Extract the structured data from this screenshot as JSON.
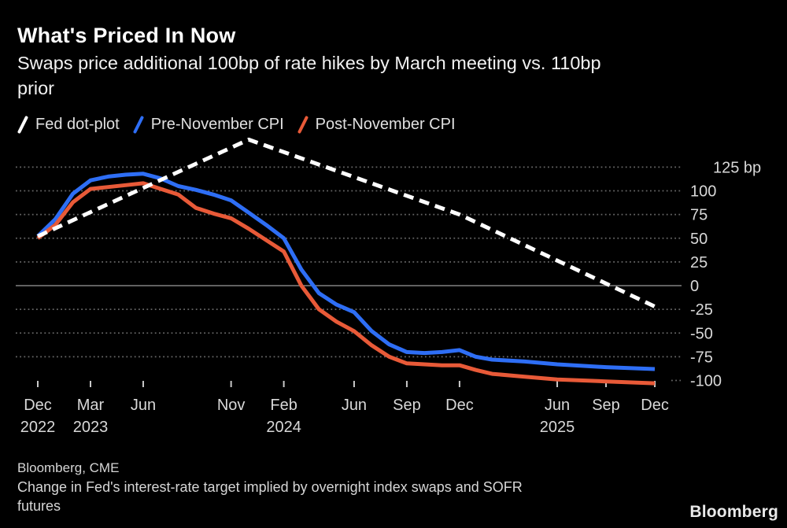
{
  "header": {
    "title": "What's Priced In Now",
    "subtitle_lines": [
      "Swaps price additional 100bp of rate hikes by March meeting vs. 110bp",
      "prior"
    ]
  },
  "legend": {
    "items": [
      {
        "label": "Fed dot-plot",
        "color": "#FFFFFF"
      },
      {
        "label": "Pre-November CPI",
        "color": "#2E6EF5"
      },
      {
        "label": "Post-November CPI",
        "color": "#E85A38"
      }
    ]
  },
  "chart_data": {
    "type": "line",
    "x_unit": "months_from_Dec_2022",
    "y_unit": "bp",
    "ylim": [
      -110,
      160
    ],
    "grid": {
      "dotted_color": "#666666",
      "zero_line_color": "#818181",
      "tick_color": "#c9c9c9"
    },
    "y_ticks": [
      {
        "value": 125,
        "label": "125 bp",
        "grid": "dotted"
      },
      {
        "value": 100,
        "label": "100",
        "grid": "dotted"
      },
      {
        "value": 75,
        "label": "75",
        "grid": "dotted"
      },
      {
        "value": 50,
        "label": "50",
        "grid": "dotted"
      },
      {
        "value": 25,
        "label": "25",
        "grid": "dotted"
      },
      {
        "value": 0,
        "label": "0",
        "grid": "solid"
      },
      {
        "value": -25,
        "label": "-25",
        "grid": "dotted"
      },
      {
        "value": -50,
        "label": "-50",
        "grid": "dotted"
      },
      {
        "value": -75,
        "label": "-75",
        "grid": "dotted"
      },
      {
        "value": -100,
        "label": "-100",
        "grid": "stub"
      }
    ],
    "x_ticks": [
      {
        "m": 0,
        "month": "Dec",
        "year": "2022"
      },
      {
        "m": 3,
        "month": "Mar",
        "year": "2023"
      },
      {
        "m": 6,
        "month": "Jun",
        "year": ""
      },
      {
        "m": 11,
        "month": "Nov",
        "year": ""
      },
      {
        "m": 14,
        "month": "Feb",
        "year": "2024"
      },
      {
        "m": 18,
        "month": "Jun",
        "year": ""
      },
      {
        "m": 21,
        "month": "Sep",
        "year": ""
      },
      {
        "m": 24,
        "month": "Dec",
        "year": ""
      },
      {
        "m": 30,
        "month": "Jun",
        "year": "2025"
      },
      {
        "m": 33,
        "month": "Sep",
        "year": ""
      },
      {
        "m": 36,
        "month": "Dec",
        "year": ""
      }
    ],
    "series": [
      {
        "name": "Pre-November CPI",
        "color": "#2E6EF5",
        "style": "solid",
        "points": [
          [
            0,
            52
          ],
          [
            1,
            70
          ],
          [
            2,
            97
          ],
          [
            3,
            111
          ],
          [
            4,
            115
          ],
          [
            5,
            117
          ],
          [
            6,
            118
          ],
          [
            7,
            113
          ],
          [
            8,
            105
          ],
          [
            9,
            101
          ],
          [
            10,
            96
          ],
          [
            11,
            90
          ],
          [
            12,
            77
          ],
          [
            13,
            64
          ],
          [
            14,
            50
          ],
          [
            15,
            17
          ],
          [
            16,
            -8
          ],
          [
            17,
            -20
          ],
          [
            18,
            -28
          ],
          [
            19,
            -48
          ],
          [
            20,
            -62
          ],
          [
            21,
            -70
          ],
          [
            22,
            -71
          ],
          [
            23,
            -70
          ],
          [
            24,
            -68
          ],
          [
            25,
            -75
          ],
          [
            26,
            -78
          ],
          [
            28,
            -80
          ],
          [
            30,
            -83
          ],
          [
            33,
            -86
          ],
          [
            36,
            -88
          ]
        ]
      },
      {
        "name": "Post-November CPI",
        "color": "#E85A38",
        "style": "solid",
        "points": [
          [
            0,
            50
          ],
          [
            1,
            64
          ],
          [
            2,
            88
          ],
          [
            3,
            102
          ],
          [
            4,
            104
          ],
          [
            5,
            106
          ],
          [
            6,
            108
          ],
          [
            7,
            102
          ],
          [
            8,
            96
          ],
          [
            9,
            82
          ],
          [
            10,
            76
          ],
          [
            11,
            71
          ],
          [
            12,
            60
          ],
          [
            13,
            48
          ],
          [
            14,
            36
          ],
          [
            15,
            0
          ],
          [
            16,
            -25
          ],
          [
            17,
            -38
          ],
          [
            18,
            -48
          ],
          [
            19,
            -63
          ],
          [
            20,
            -75
          ],
          [
            21,
            -82
          ],
          [
            22,
            -83
          ],
          [
            23,
            -84
          ],
          [
            24,
            -84
          ],
          [
            25,
            -89
          ],
          [
            26,
            -93
          ],
          [
            28,
            -96
          ],
          [
            30,
            -99
          ],
          [
            33,
            -101
          ],
          [
            36,
            -103
          ]
        ]
      },
      {
        "name": "Fed dot-plot",
        "color": "#FFFFFF",
        "style": "dashed",
        "points": [
          [
            0,
            52
          ],
          [
            12,
            154
          ],
          [
            24,
            75
          ],
          [
            36,
            -22
          ]
        ]
      }
    ]
  },
  "footer": {
    "source": "Bloomberg, CME",
    "note_lines": [
      "Change in Fed's interest-rate target implied by overnight index swaps and SOFR",
      "futures"
    ],
    "logo": "Bloomberg"
  }
}
